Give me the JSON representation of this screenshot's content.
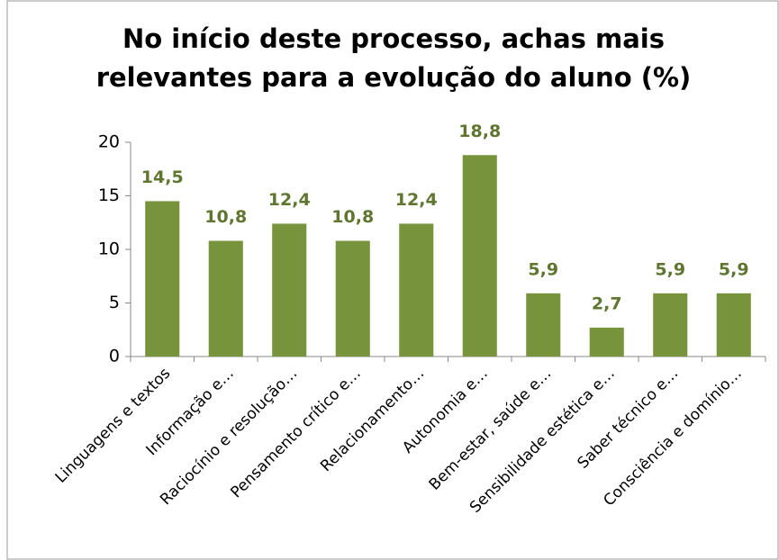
{
  "chart_data": {
    "type": "bar",
    "title": [
      "No início deste processo, achas mais",
      "relevantes para a evolução do aluno (%)"
    ],
    "categories": [
      "Linguagens e textos",
      "Informação e…",
      "Raciocínio e resolução…",
      "Pensamento crítico e…",
      "Relacionamento…",
      "Autonomia e…",
      "Bem-estar, saúde e…",
      "Sensibilidade estética e…",
      "Saber técnico e…",
      "Consciência e domínio…"
    ],
    "values": [
      14.5,
      10.8,
      12.4,
      10.8,
      12.4,
      18.8,
      5.9,
      2.7,
      5.9,
      5.9
    ],
    "value_labels": [
      "14,5",
      "10,8",
      "12,4",
      "10,8",
      "12,4",
      "18,8",
      "5,9",
      "2,7",
      "5,9",
      "5,9"
    ],
    "color": "#77933c",
    "ylim": [
      0,
      20
    ],
    "yticks": [
      0,
      5,
      10,
      15,
      20
    ],
    "grid": false
  }
}
